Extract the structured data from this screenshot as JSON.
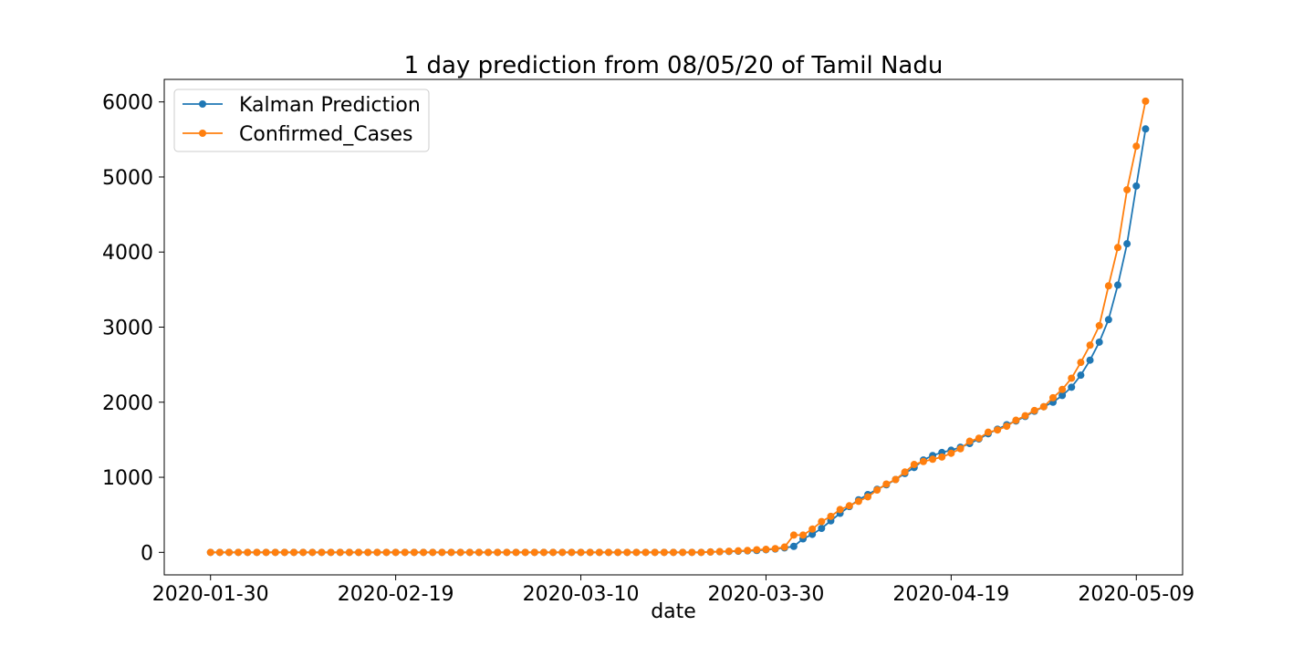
{
  "chart_data": {
    "type": "line",
    "title": "1 day prediction from 08/05/20 of Tamil Nadu",
    "xlabel": "date",
    "ylabel": "",
    "x_start": "2020-01-30",
    "x_end": "2020-05-09",
    "xlim": [
      "2020-01-25",
      "2020-05-14"
    ],
    "ylim": [
      -300,
      6300
    ],
    "xticks": [
      "2020-01-30",
      "2020-02-19",
      "2020-03-10",
      "2020-03-30",
      "2020-04-19",
      "2020-05-09"
    ],
    "yticks": [
      0,
      1000,
      2000,
      3000,
      4000,
      5000,
      6000
    ],
    "grid": false,
    "legend_position": "upper-left",
    "series": [
      {
        "name": "Kalman Prediction",
        "color": "#1f77b4",
        "values": [
          0,
          0,
          0,
          0,
          0,
          0,
          0,
          0,
          0,
          0,
          0,
          0,
          0,
          0,
          0,
          0,
          0,
          0,
          0,
          0,
          0,
          0,
          0,
          0,
          0,
          0,
          0,
          0,
          0,
          0,
          0,
          0,
          0,
          0,
          0,
          0,
          0,
          0,
          0,
          0,
          0,
          0,
          0,
          0,
          0,
          0,
          0,
          0,
          0,
          0,
          0,
          0,
          0,
          0,
          5,
          8,
          12,
          15,
          20,
          25,
          35,
          45,
          60,
          80,
          180,
          240,
          320,
          420,
          520,
          610,
          700,
          770,
          840,
          900,
          970,
          1050,
          1130,
          1230,
          1290,
          1330,
          1360,
          1400,
          1450,
          1510,
          1580,
          1640,
          1700,
          1750,
          1810,
          1880,
          1940,
          2000,
          2090,
          2200,
          2360,
          2560,
          2800,
          3100,
          3560,
          4110,
          4880,
          5640
        ]
      },
      {
        "name": "Confirmed_Cases",
        "color": "#ff7f0e",
        "values": [
          0,
          0,
          0,
          0,
          0,
          0,
          0,
          0,
          0,
          0,
          0,
          0,
          0,
          0,
          0,
          0,
          0,
          0,
          0,
          0,
          0,
          0,
          0,
          0,
          0,
          0,
          0,
          0,
          0,
          0,
          0,
          0,
          0,
          0,
          0,
          0,
          0,
          0,
          0,
          0,
          0,
          0,
          0,
          0,
          0,
          0,
          0,
          0,
          0,
          0,
          0,
          0,
          0,
          0,
          5,
          10,
          15,
          20,
          25,
          35,
          40,
          50,
          70,
          230,
          230,
          310,
          410,
          480,
          570,
          620,
          680,
          740,
          830,
          910,
          970,
          1070,
          1170,
          1210,
          1240,
          1270,
          1320,
          1380,
          1480,
          1520,
          1600,
          1630,
          1680,
          1760,
          1820,
          1890,
          1940,
          2060,
          2170,
          2320,
          2530,
          2760,
          3020,
          3550,
          4060,
          4830,
          5410,
          6010
        ]
      }
    ]
  }
}
